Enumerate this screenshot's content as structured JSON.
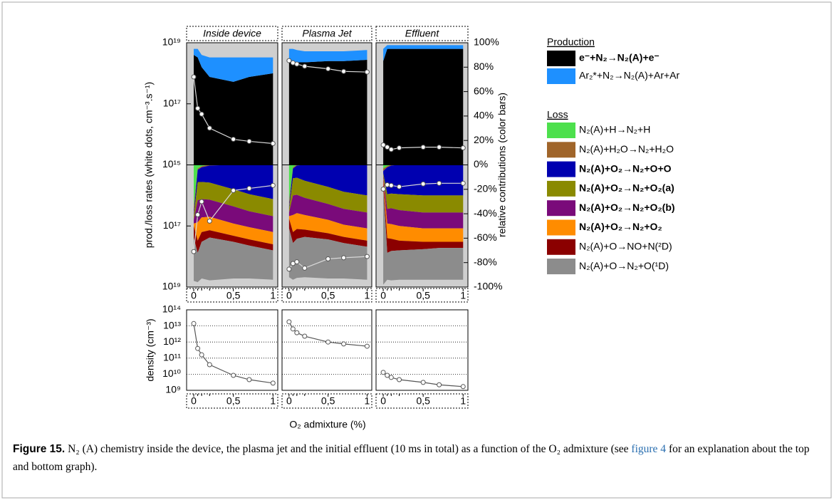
{
  "chart_data": {
    "type": "stacked-area",
    "panels": [
      "Inside device",
      "Plasma Jet",
      "Effluent"
    ],
    "x": [
      0,
      0.05,
      0.1,
      0.2,
      0.5,
      0.7,
      1
    ],
    "xlim": [
      -0.09,
      1.06
    ],
    "xticks": [
      0,
      {
        "value": 0.5,
        "label": "0,5"
      },
      1
    ],
    "xlabel": "O₂ admixture (%)",
    "rate_label": "prod./loss rates (white dots, cm⁻³.s⁻¹)",
    "contrib_label": "relative contributions (color bars)",
    "density_label": "density (cm⁻³)",
    "production_ylim": [
      1000000000000000.0,
      1e+19
    ],
    "production_yticks": [
      {
        "value": 1000000000000000.0,
        "label": "10¹⁵"
      },
      {
        "value": 1e+17,
        "label": "10¹⁷"
      },
      {
        "value": 1e+19,
        "label": "10¹⁹"
      }
    ],
    "loss_ylim": [
      1000000000000000.0,
      1e+19
    ],
    "loss_yticks": [
      {
        "value": 1e+17,
        "label": "10¹⁷"
      },
      {
        "value": 1e+19,
        "label": "10¹⁹"
      }
    ],
    "contrib_ylim": [
      -100,
      100
    ],
    "contrib_yticks": [
      {
        "value": 100,
        "label": "100%"
      },
      {
        "value": 80,
        "label": "80%"
      },
      {
        "value": 60,
        "label": "60%"
      },
      {
        "value": 40,
        "label": "40%"
      },
      {
        "value": 20,
        "label": "20%"
      },
      {
        "value": 0,
        "label": "0%"
      },
      {
        "value": -20,
        "label": "-20%"
      },
      {
        "value": -40,
        "label": "-40%"
      },
      {
        "value": -60,
        "label": "-60%"
      },
      {
        "value": -80,
        "label": "-80%"
      },
      {
        "value": -100,
        "label": "-100%"
      }
    ],
    "density_ylim": [
      1000000000.0,
      100000000000000.0
    ],
    "density_yticks": [
      {
        "value": 1000000000.0,
        "label": "10⁹"
      },
      {
        "value": 10000000000.0,
        "label": "10¹⁰"
      },
      {
        "value": 100000000000.0,
        "label": "10¹¹"
      },
      {
        "value": 1000000000000.0,
        "label": "10¹²"
      },
      {
        "value": 10000000000000.0,
        "label": "10¹³"
      },
      {
        "value": 100000000000000.0,
        "label": "10¹⁴"
      }
    ],
    "grid": true,
    "production_title": "Production",
    "loss_title": "Loss",
    "production_series": [
      {
        "name": "e⁻+N₂→N₂(A)+e⁻",
        "color": "#000000",
        "bold": true,
        "values": [
          [
            90,
            88,
            80,
            72,
            68,
            72,
            75
          ],
          [
            85,
            85,
            84,
            84,
            85,
            85,
            86
          ],
          [
            85,
            95,
            95,
            95,
            95,
            95,
            95
          ]
        ]
      },
      {
        "name": "Ar₂*+N₂→N₂(A)+Ar+Ar",
        "color": "#1e90ff",
        "bold": false,
        "values": [
          [
            5,
            7,
            10,
            16,
            20,
            16,
            13
          ],
          [
            10,
            10,
            10,
            9,
            8,
            8,
            8
          ],
          [
            10,
            3,
            3,
            3,
            3,
            3,
            3
          ]
        ]
      }
    ],
    "loss_series": [
      {
        "name": "N₂(A)+H→N₂+H",
        "color": "#4de04d",
        "bold": false,
        "values": [
          [
            -35,
            -3,
            -1,
            0,
            0,
            0,
            0
          ],
          [
            -30,
            -2,
            0,
            0,
            0,
            0,
            0
          ],
          [
            -3,
            -1,
            0,
            0,
            0,
            0,
            0
          ]
        ]
      },
      {
        "name": "N₂(A)+H₂O→N₂+H₂O",
        "color": "#a0652a",
        "bold": false,
        "values": [
          [
            -5,
            -1,
            -1,
            -0.5,
            0,
            0,
            0
          ],
          [
            -4,
            -1,
            -0.5,
            0,
            0,
            0,
            0
          ],
          [
            -2,
            -1,
            -0.5,
            0,
            0,
            0,
            0
          ]
        ]
      },
      {
        "name": "N₂(A)+O₂→N₂+O+O",
        "color": "#0000b0",
        "bold": true,
        "values": [
          [
            -2,
            -10,
            -12,
            -14,
            -20,
            -24,
            -28
          ],
          [
            -2,
            -8,
            -10,
            -13,
            -18,
            -22,
            -25
          ],
          [
            -2,
            -22,
            -23,
            -24,
            -25,
            -25,
            -25
          ]
        ]
      },
      {
        "name": "N₂(A)+O₂→N₂+O₂(a)",
        "color": "#8a8a00",
        "bold": true,
        "values": [
          [
            -3,
            -15,
            -14,
            -14,
            -14,
            -14,
            -14
          ],
          [
            -3,
            -14,
            -14,
            -14,
            -14,
            -14,
            -14
          ],
          [
            -2,
            -12,
            -12,
            -13,
            -14,
            -14,
            -14
          ]
        ]
      },
      {
        "name": "N₂(A)+O₂→N₂+O₂(b)",
        "color": "#7a0a7a",
        "bold": true,
        "values": [
          [
            -3,
            -18,
            -15,
            -14,
            -14,
            -13,
            -13
          ],
          [
            -3,
            -16,
            -15,
            -14,
            -13,
            -13,
            -13
          ],
          [
            -2,
            -12,
            -13,
            -13,
            -13,
            -13,
            -13
          ]
        ]
      },
      {
        "name": "N₂(A)+O₂→N₂+O₂",
        "color": "#ff8c00",
        "bold": true,
        "values": [
          [
            -2,
            -15,
            -12,
            -11,
            -10,
            -10,
            -10
          ],
          [
            -2,
            -14,
            -13,
            -12,
            -11,
            -10,
            -10
          ],
          [
            -2,
            -12,
            -12,
            -12,
            -11,
            -11,
            -11
          ]
        ]
      },
      {
        "name": "N₂(A)+O→NO+N(²D)",
        "color": "#8b0000",
        "bold": false,
        "values": [
          [
            -10,
            -10,
            -8,
            -6,
            -5,
            -5,
            -5
          ],
          [
            -8,
            -9,
            -8,
            -6,
            -5,
            -5,
            -5
          ],
          [
            -5,
            -12,
            -10,
            -8,
            -6,
            -5,
            -5
          ]
        ]
      },
      {
        "name": "N₂(A)+O→N₂+O(¹D)",
        "color": "#8c8c8c",
        "bold": false,
        "values": [
          [
            -35,
            -24,
            -30,
            -35,
            -30,
            -27,
            -24
          ],
          [
            -40,
            -30,
            -32,
            -33,
            -32,
            -29,
            -27
          ],
          [
            -80,
            -22,
            -24,
            -24,
            -25,
            -26,
            -26
          ]
        ]
      }
    ],
    "production_rate": [
      [
        7.6e+17,
        7.1e+16,
        4.6e+16,
        1.6e+16,
        6900000000000000.0,
        5900000000000000.0,
        5000000000000000.0
      ],
      [
        2.6e+18,
        2.2e+18,
        2e+18,
        1.7e+18,
        1.4e+18,
        1.15e+18,
        1.1e+18
      ],
      [
        4500000000000000.0,
        3800000000000000.0,
        3200000000000000.0,
        3600000000000000.0,
        3800000000000000.0,
        3800000000000000.0,
        3600000000000000.0
      ]
    ],
    "loss_rate": [
      [
        6.9e+17,
        4.3e+16,
        1.6e+16,
        6.9e+16,
        6900000000000000.0,
        5900000000000000.0,
        4700000000000000.0
      ],
      [
        2.6e+18,
        1.7e+18,
        1.5e+18,
        2.4e+18,
        1.2e+18,
        1.1e+18,
        1e+18
      ],
      [
        6200000000000000.0,
        4500000000000000.0,
        4700000000000000.0,
        5200000000000000.0,
        4200000000000000.0,
        4000000000000000.0,
        4000000000000000.0
      ]
    ],
    "density": [
      [
        14000000000000.0,
        400000000000.0,
        160000000000.0,
        39000000000.0,
        8500000000.0,
        4600000000.0,
        2800000000.0
      ],
      [
        18000000000000.0,
        6500000000000.0,
        3800000000000.0,
        2300000000000.0,
        1000000000000.0,
        760000000000.0,
        550000000000.0
      ],
      [
        13000000000.0,
        8500000000.0,
        6300000000.0,
        4600000000.0,
        3100000000.0,
        2200000000.0,
        1700000000.0
      ]
    ]
  },
  "caption": {
    "label": "Figure 15.",
    "text_1": "N₂ (A) chemistry inside the device, the plasma jet and the initial effluent (10 ms in total) as a function of the O₂ admixture (see ",
    "link": "figure 4",
    "text_2": " for an explanation about the top and bottom graph)."
  }
}
